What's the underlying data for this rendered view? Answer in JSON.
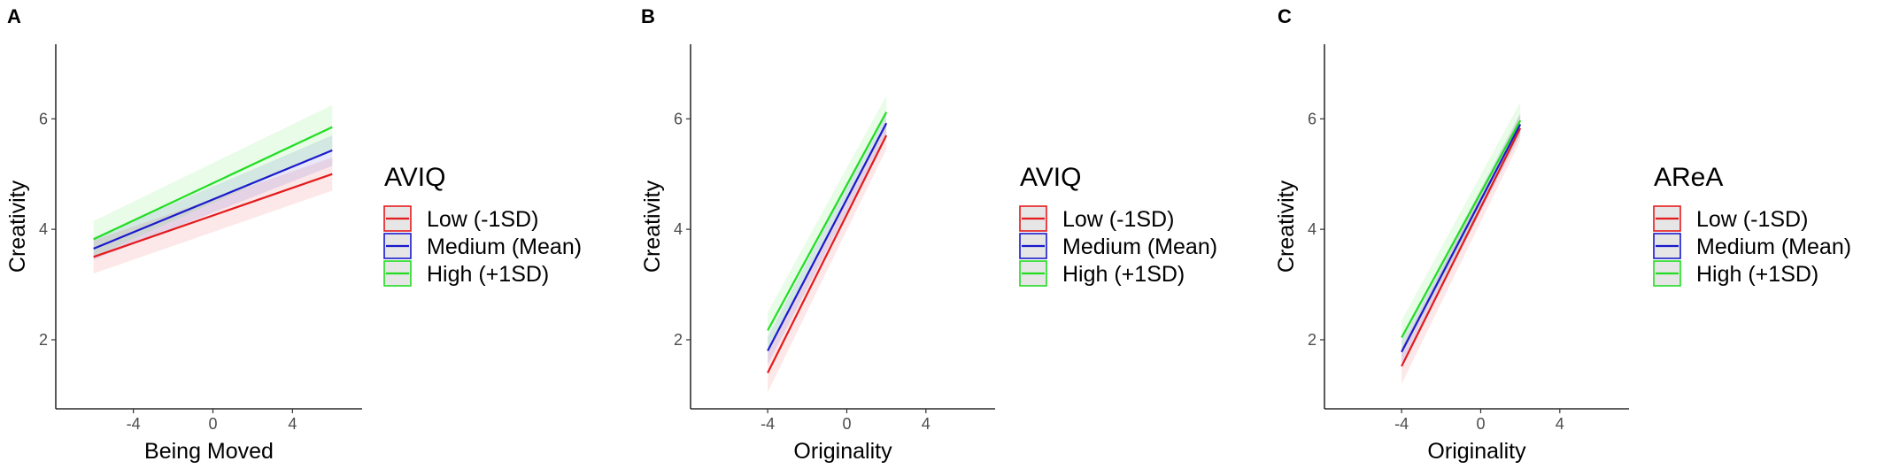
{
  "chart_data": [
    {
      "panel": "A",
      "type": "line",
      "xlabel": "Being Moved",
      "ylabel": "Creativity",
      "xlim": [
        -7.9,
        7.5
      ],
      "ylim": [
        0.75,
        7.35
      ],
      "xticks": [
        -4,
        0,
        4
      ],
      "yticks": [
        2,
        4,
        6
      ],
      "grid": false,
      "legend": {
        "title": "AVIQ",
        "position": "right"
      },
      "series": [
        {
          "name": "Low (-1SD)",
          "color": "#e41a1c",
          "x": [
            -6,
            6
          ],
          "y": [
            3.5,
            5.0
          ],
          "ci_lower": [
            3.2,
            4.7
          ],
          "ci_upper": [
            3.8,
            5.3
          ]
        },
        {
          "name": "Medium (Mean)",
          "color": "#1a1acc",
          "x": [
            -6,
            6
          ],
          "y": [
            3.65,
            5.43
          ],
          "ci_lower": [
            3.45,
            5.15
          ],
          "ci_upper": [
            3.85,
            5.7
          ]
        },
        {
          "name": "High (+1SD)",
          "color": "#22dd22",
          "x": [
            -6,
            6
          ],
          "y": [
            3.82,
            5.85
          ],
          "ci_lower": [
            3.5,
            5.45
          ],
          "ci_upper": [
            4.15,
            6.25
          ]
        }
      ]
    },
    {
      "panel": "B",
      "type": "line",
      "xlabel": "Originality",
      "ylabel": "Creativity",
      "xlim": [
        -7.9,
        7.5
      ],
      "ylim": [
        0.75,
        7.35
      ],
      "xticks": [
        -4,
        0,
        4
      ],
      "yticks": [
        2,
        4,
        6
      ],
      "grid": false,
      "legend": {
        "title": "AVIQ",
        "position": "right"
      },
      "series": [
        {
          "name": "Low (-1SD)",
          "color": "#e41a1c",
          "x": [
            -4,
            2
          ],
          "y": [
            1.4,
            5.7
          ],
          "ci_lower": [
            1.05,
            5.45
          ],
          "ci_upper": [
            1.75,
            5.95
          ]
        },
        {
          "name": "Medium (Mean)",
          "color": "#1a1acc",
          "x": [
            -4,
            2
          ],
          "y": [
            1.8,
            5.92
          ],
          "ci_lower": [
            1.55,
            5.7
          ],
          "ci_upper": [
            2.05,
            6.15
          ]
        },
        {
          "name": "High (+1SD)",
          "color": "#22dd22",
          "x": [
            -4,
            2
          ],
          "y": [
            2.17,
            6.12
          ],
          "ci_lower": [
            1.85,
            5.85
          ],
          "ci_upper": [
            2.5,
            6.42
          ]
        }
      ]
    },
    {
      "panel": "C",
      "type": "line",
      "xlabel": "Originality",
      "ylabel": "Creativity",
      "xlim": [
        -7.9,
        7.5
      ],
      "ylim": [
        0.75,
        7.35
      ],
      "xticks": [
        -4,
        0,
        4
      ],
      "yticks": [
        2,
        4,
        6
      ],
      "grid": false,
      "legend": {
        "title": "AReA",
        "position": "right"
      },
      "series": [
        {
          "name": "Low (-1SD)",
          "color": "#e41a1c",
          "x": [
            -4,
            2
          ],
          "y": [
            1.52,
            5.83
          ],
          "ci_lower": [
            1.2,
            5.6
          ],
          "ci_upper": [
            1.85,
            6.08
          ]
        },
        {
          "name": "Medium (Mean)",
          "color": "#1a1acc",
          "x": [
            -4,
            2
          ],
          "y": [
            1.78,
            5.9
          ],
          "ci_lower": [
            1.55,
            5.7
          ],
          "ci_upper": [
            2.0,
            6.1
          ]
        },
        {
          "name": "High (+1SD)",
          "color": "#22dd22",
          "x": [
            -4,
            2
          ],
          "y": [
            2.04,
            5.97
          ],
          "ci_lower": [
            1.75,
            5.72
          ],
          "ci_upper": [
            2.35,
            6.3
          ]
        }
      ]
    }
  ]
}
